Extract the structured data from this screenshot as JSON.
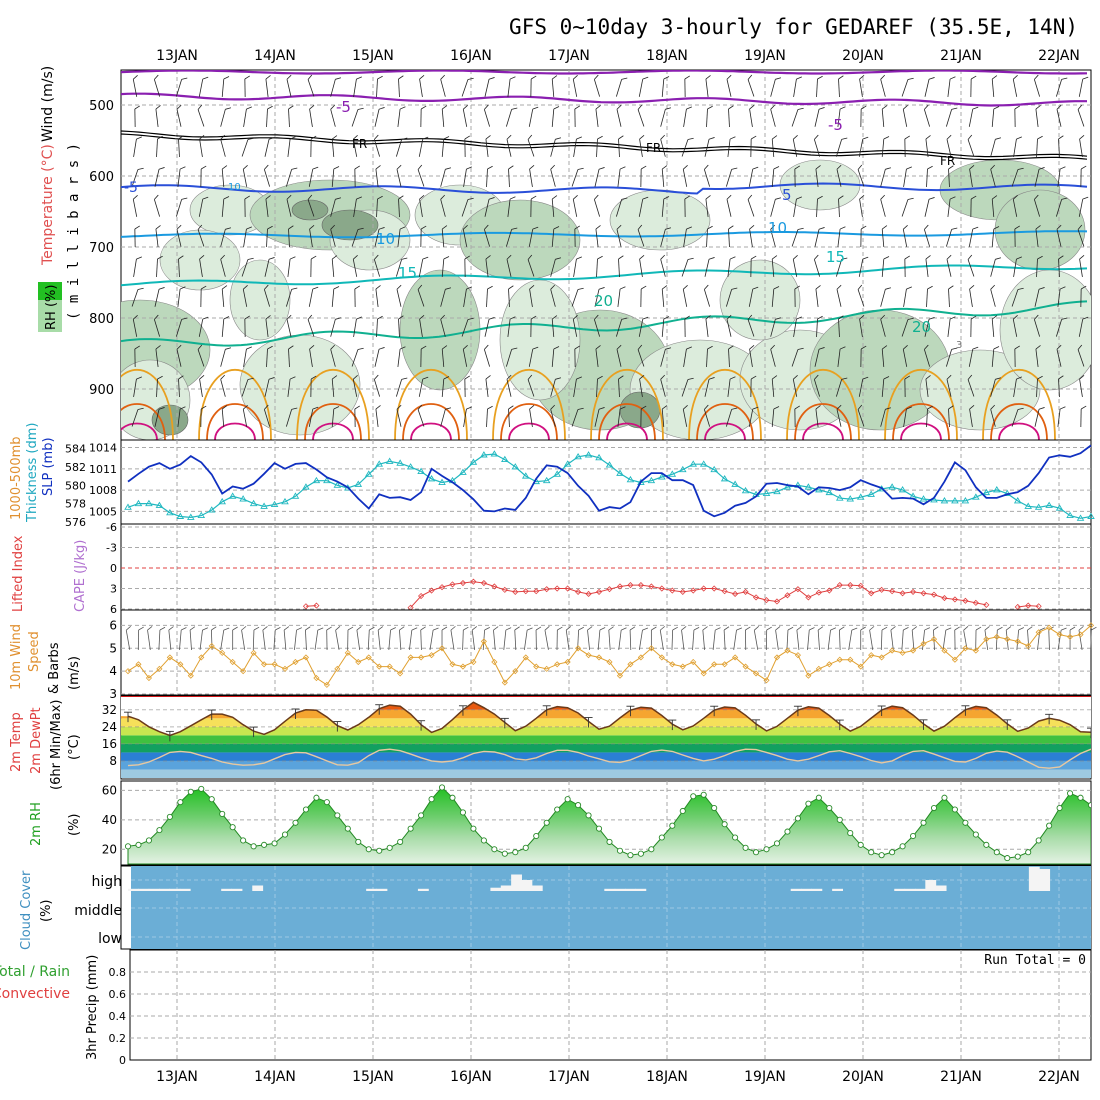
{
  "title": "GFS 0~10day 3-hourly for GEDAREF (35.5E, 14N)",
  "dates": [
    "13JAN",
    "14JAN",
    "15JAN",
    "16JAN",
    "17JAN",
    "18JAN",
    "19JAN",
    "20JAN",
    "21JAN",
    "22JAN"
  ],
  "colors": {
    "temp_neg": "#8a1fb0",
    "freezing": "#000000",
    "temp_low": "#2a4fd8",
    "temp_10": "#1a9ae0",
    "temp_15": "#10b8b8",
    "temp_20": "#10b090",
    "temp_warm": "#e8a020",
    "temp_hot": "#e06010",
    "temp_max": "#d01080",
    "rh": "#c8e6c8",
    "slp": "#1030c0",
    "thick": "#20b8c0",
    "li": "#e04040",
    "wind": "#e0a030",
    "cloud": "#6baed6",
    "precip": "#40c040"
  },
  "panels": {
    "upper": {
      "y_label_rh": "RH (%)",
      "y_label_temp": "Temperature (°C)",
      "y_label_wind": "Wind (m/s)",
      "y_label_units": "( m i l l i b a r s )",
      "ticks": [
        "500",
        "600",
        "700",
        "800",
        "900"
      ],
      "contour_labels": [
        "-5",
        "-5",
        "FR",
        "FR",
        "FR",
        "-5",
        "5",
        "10",
        "10",
        "10",
        "15",
        "15",
        "20",
        "20",
        "3"
      ]
    },
    "slp": {
      "y_label_a": "1000-500mb",
      "y_label_b": "Thickness (dm)",
      "y_label_c": "SLP (mb)",
      "ticks_left": [
        "584",
        "582",
        "580",
        "578",
        "576"
      ],
      "ticks_right": [
        "1014",
        "1011",
        "1008",
        "1005"
      ]
    },
    "li": {
      "y_label_a": "Lifted Index",
      "y_label_b": "CAPE (J/kg)",
      "ticks": [
        "-6",
        "-3",
        "0",
        "3",
        "6"
      ]
    },
    "wind10": {
      "y_label_a": "10m Wind",
      "y_label_b": "Speed",
      "y_label_c": "& Barbs",
      "y_label_d": "(m/s)",
      "ticks": [
        "6",
        "5",
        "4",
        "3"
      ]
    },
    "temp2m": {
      "y_label_a": "2m Temp",
      "y_label_b": "2m DewPt",
      "y_label_c": "(6hr Min/Max)",
      "y_label_d": "(°C)",
      "ticks": [
        "32",
        "24",
        "16",
        "8"
      ]
    },
    "rh2m": {
      "y_label_a": "2m RH",
      "y_label_b": "(%)",
      "ticks": [
        "60",
        "40",
        "20"
      ]
    },
    "cloud": {
      "y_label_a": "Cloud Cover",
      "y_label_b": "(%)",
      "levels": [
        "high",
        "middle",
        "low"
      ]
    },
    "precip": {
      "y_label_a": "Total / Rain",
      "y_label_b": "Convective",
      "y_label_c": "3hr Precip (mm)",
      "ticks": [
        "0.8",
        "0.6",
        "0.4",
        "0.2",
        "0"
      ],
      "run_total": "Run Total = 0"
    }
  },
  "chart_data": [
    {
      "type": "line",
      "title": "1000-500mb Thickness / SLP",
      "x_unit": "hours from 12JAN 12Z (3-hourly)",
      "series": [
        {
          "name": "SLP (mb)",
          "ylim": [
            1003.5,
            1014.5
          ],
          "values": [
            1009.2,
            1010.3,
            1011.3,
            1011.8,
            1011.0,
            1011.6,
            1012.8,
            1011.9,
            1010.2,
            1007.5,
            1008.5,
            1008.2,
            1008.9,
            1010.3,
            1011.8,
            1011.0,
            1011.7,
            1011.8,
            1010.9,
            1009.8,
            1009.2,
            1008.4,
            1006.8,
            1005.4,
            1007.4,
            1006.9,
            1007.0,
            1006.6,
            1007.7,
            1011.0,
            1010.0,
            1009.1,
            1008.0,
            1006.7,
            1005.1,
            1005.0,
            1005.4,
            1005.2,
            1006.9,
            1009.6,
            1011.5,
            1011.3,
            1010.4,
            1008.6,
            1007.2,
            1005.1,
            1005.6,
            1005.4,
            1006.3,
            1009.2,
            1010.4,
            1010.4,
            1009.4,
            1009.4,
            1008.7,
            1005.1,
            1004.3,
            1004.8,
            1005.8,
            1006.2,
            1007.1,
            1008.9,
            1009.0,
            1008.7,
            1008.5,
            1007.4,
            1008.4,
            1008.3,
            1008.0,
            1008.4,
            1009.4,
            1008.8,
            1008.3,
            1006.8,
            1006.9,
            1006.8,
            1006.0,
            1006.9,
            1009.2,
            1011.9,
            1010.8,
            1008.4,
            1006.9,
            1006.9,
            1007.4,
            1007.7,
            1008.6,
            1010.4,
            1012.6,
            1012.9,
            1012.7,
            1013.2,
            1014.3
          ]
        },
        {
          "name": "1000-500mb Thickness (dm)",
          "ylim": [
            576,
            584.5
          ],
          "values": [
            577.6,
            578.0,
            578.0,
            577.8,
            577.0,
            576.6,
            576.5,
            576.7,
            577.3,
            578.2,
            578.8,
            578.5,
            578.0,
            577.7,
            577.9,
            578.2,
            578.8,
            579.8,
            580.5,
            580.5,
            580.0,
            579.7,
            580.1,
            581.2,
            582.3,
            582.6,
            582.4,
            582.0,
            581.5,
            580.7,
            580.3,
            580.5,
            581.4,
            582.5,
            583.3,
            583.4,
            582.8,
            582.0,
            581.0,
            580.4,
            580.5,
            581.2,
            582.3,
            583.1,
            583.3,
            583.0,
            582.2,
            581.3,
            580.6,
            580.3,
            580.5,
            580.9,
            581.2,
            581.7,
            582.3,
            582.3,
            581.7,
            580.7,
            580.1,
            579.4,
            579.0,
            579.1,
            579.3,
            579.8,
            580.0,
            579.8,
            579.5,
            579.2,
            578.6,
            578.5,
            578.7,
            579.0,
            579.6,
            579.8,
            579.5,
            578.8,
            578.5,
            578.4,
            578.3,
            578.3,
            578.3,
            578.7,
            579.2,
            579.5,
            579.1,
            578.3,
            577.7,
            577.6,
            577.8,
            577.5,
            576.7,
            576.4,
            576.6
          ]
        }
      ]
    },
    {
      "type": "line",
      "title": "Lifted Index",
      "ylim": [
        -6,
        6
      ],
      "values": [
        null,
        null,
        null,
        null,
        null,
        null,
        null,
        null,
        null,
        null,
        null,
        null,
        null,
        null,
        null,
        null,
        null,
        5.6,
        5.5,
        null,
        null,
        null,
        null,
        null,
        null,
        null,
        null,
        5.8,
        4.1,
        3.3,
        2.8,
        2.4,
        2.2,
        2.0,
        2.2,
        2.7,
        3.2,
        3.5,
        3.4,
        3.4,
        3.1,
        3.0,
        3.0,
        3.5,
        3.8,
        3.5,
        3.1,
        2.7,
        2.5,
        2.5,
        2.7,
        3.0,
        3.3,
        3.5,
        3.3,
        3.0,
        3.0,
        3.4,
        3.8,
        3.5,
        4.3,
        4.7,
        4.9,
        4.0,
        3.1,
        4.3,
        3.6,
        3.3,
        2.5,
        2.5,
        2.6,
        3.7,
        3.2,
        3.4,
        3.7,
        3.5,
        3.7,
        3.9,
        4.4,
        4.6,
        4.8,
        5.1,
        5.4,
        null,
        null,
        5.7,
        5.5,
        5.6,
        null,
        null,
        null,
        null,
        null
      ]
    },
    {
      "type": "line",
      "title": "10m Wind Speed",
      "ylim": [
        3,
        6.5
      ],
      "values": [
        4.0,
        4.3,
        3.7,
        4.1,
        4.6,
        4.3,
        3.8,
        4.6,
        5.1,
        4.8,
        4.4,
        4.0,
        4.8,
        4.3,
        4.3,
        4.1,
        4.4,
        4.6,
        3.7,
        3.4,
        4.1,
        4.8,
        4.4,
        4.6,
        4.2,
        4.2,
        3.9,
        4.6,
        4.6,
        4.7,
        5.0,
        4.3,
        4.2,
        4.4,
        5.3,
        4.4,
        3.5,
        4.0,
        4.6,
        4.2,
        4.1,
        4.3,
        4.4,
        5.0,
        4.7,
        4.6,
        4.4,
        3.8,
        4.3,
        4.6,
        5.0,
        4.6,
        4.3,
        4.2,
        4.4,
        3.9,
        4.3,
        4.3,
        4.6,
        4.2,
        3.9,
        3.6,
        4.6,
        4.9,
        4.7,
        3.8,
        4.1,
        4.3,
        4.5,
        4.5,
        4.2,
        4.7,
        4.6,
        4.9,
        4.8,
        4.9,
        5.2,
        5.4,
        4.9,
        4.5,
        5.0,
        4.9,
        5.4,
        5.5,
        5.4,
        5.3,
        5.1,
        5.7,
        5.9,
        5.6,
        5.5,
        5.6,
        6.0
      ]
    },
    {
      "type": "area",
      "title": "2m Temp / DewPt",
      "ylim": [
        0,
        38
      ],
      "series": [
        {
          "name": "2m Temp",
          "values": [
            29,
            27.3,
            24,
            21.7,
            20,
            21.7,
            24.5,
            27.3,
            30,
            30,
            28.5,
            25,
            22,
            20.5,
            22.6,
            26.6,
            30.5,
            32,
            31.8,
            28.6,
            24.6,
            22.5,
            25,
            28.5,
            32.5,
            34.2,
            33.7,
            30,
            25,
            21.4,
            23.2,
            27.4,
            32,
            35.5,
            33,
            30,
            26.1,
            22.2,
            24.3,
            28,
            32,
            33.5,
            33,
            30.5,
            26.5,
            22.9,
            24.3,
            28.2,
            31.8,
            33.2,
            32.8,
            29.3,
            25.3,
            22.6,
            24.4,
            28,
            31.8,
            33.3,
            32.9,
            29.4,
            25.4,
            22.1,
            24.2,
            28,
            31.8,
            33.4,
            32.8,
            29.3,
            25.3,
            22,
            24.2,
            28.1,
            31.9,
            33.7,
            33,
            29.5,
            25.4,
            22,
            24.3,
            28.3,
            32,
            33.6,
            33,
            29.5,
            25.4,
            21.9,
            23.4,
            26.7,
            28,
            27.1,
            25,
            21.7,
            21.5
          ]
        },
        {
          "name": "2m DewPt",
          "values": [
            5.8,
            6.2,
            7.5,
            9.6,
            12,
            12.5,
            12,
            10.5,
            9.2,
            7.5,
            6.5,
            6,
            6.2,
            7,
            9,
            11,
            12,
            11.8,
            10,
            8,
            6.2,
            6,
            7.2,
            10.5,
            13,
            13.5,
            12.8,
            11.2,
            9.5,
            8,
            7.5,
            8,
            9.5,
            11.5,
            12.5,
            12.2,
            11,
            9,
            8.5,
            9.5,
            11.5,
            13,
            13,
            12,
            10.3,
            9,
            7.6,
            7.3,
            8.5,
            10.5,
            12.5,
            13.1,
            12.5,
            10.8,
            9.2,
            8,
            8.8,
            10.5,
            12.5,
            13.5,
            13.3,
            12,
            10.5,
            8.8,
            8,
            8.8,
            10.5,
            12.3,
            12.8,
            11.5,
            10,
            8.2,
            7.1,
            8,
            10.5,
            12.5,
            12.8,
            11.2,
            9.5,
            7.8,
            7.5,
            9.2,
            11.6,
            12.6,
            12.1,
            10,
            7.5,
            5,
            4.6,
            5.2,
            8.5,
            11.5,
            13.5
          ]
        }
      ]
    },
    {
      "type": "area",
      "title": "2m RH",
      "ylim": [
        10,
        65
      ],
      "values": [
        22,
        23,
        26,
        33,
        42,
        52,
        59,
        61,
        54,
        44,
        35,
        26,
        22,
        23,
        24,
        30,
        38,
        47,
        55,
        52,
        43,
        34,
        25,
        20,
        19,
        21,
        25,
        34,
        43,
        54,
        62,
        55,
        45,
        34,
        26,
        20,
        17,
        18,
        21,
        29,
        38,
        47,
        54,
        50,
        43,
        34,
        25,
        19,
        16,
        17,
        20,
        28,
        36,
        46,
        56,
        57,
        48,
        37,
        28,
        21,
        18,
        20,
        24,
        32,
        41,
        51,
        55,
        48,
        40,
        31,
        23,
        18,
        16,
        18,
        22,
        29,
        38,
        48,
        55,
        47,
        38,
        30,
        23,
        18,
        14,
        15,
        18,
        26,
        36,
        48,
        58,
        55,
        50
      ]
    },
    {
      "type": "bar",
      "title": "Cloud Cover (high)",
      "ylim": [
        0,
        100
      ],
      "values": [
        2,
        2,
        2,
        2,
        2,
        2,
        0,
        0,
        0,
        2,
        2,
        0,
        5,
        0,
        0,
        0,
        0,
        0,
        0,
        0,
        0,
        0,
        0,
        2,
        2,
        0,
        0,
        0,
        2,
        0,
        0,
        0,
        0,
        0,
        0,
        3,
        5,
        15,
        10,
        5,
        0,
        0,
        0,
        0,
        0,
        0,
        2,
        2,
        2,
        2,
        0,
        0,
        0,
        0,
        0,
        0,
        0,
        0,
        0,
        0,
        0,
        0,
        0,
        0,
        2,
        2,
        2,
        0,
        2,
        0,
        0,
        0,
        0,
        0,
        2,
        2,
        2,
        10,
        5,
        0,
        0,
        0,
        0,
        0,
        0,
        0,
        0,
        22,
        20,
        0,
        0,
        0,
        0
      ]
    },
    {
      "type": "bar",
      "title": "3hr Precip (mm)",
      "ylim": [
        0,
        1
      ],
      "values": [
        0,
        0,
        0,
        0,
        0,
        0,
        0,
        0,
        0,
        0,
        0,
        0,
        0,
        0,
        0,
        0,
        0,
        0,
        0,
        0,
        0,
        0,
        0,
        0,
        0,
        0,
        0,
        0,
        0,
        0,
        0,
        0,
        0,
        0,
        0,
        0,
        0,
        0,
        0,
        0,
        0,
        0,
        0,
        0,
        0,
        0,
        0,
        0,
        0,
        0,
        0,
        0,
        0,
        0,
        0,
        0,
        0,
        0,
        0,
        0,
        0,
        0,
        0,
        0,
        0,
        0,
        0,
        0,
        0,
        0,
        0,
        0,
        0,
        0,
        0,
        0,
        0,
        0,
        0,
        0,
        0,
        0,
        0,
        0,
        0,
        0,
        0,
        0,
        0,
        0,
        0,
        0,
        0
      ]
    }
  ]
}
